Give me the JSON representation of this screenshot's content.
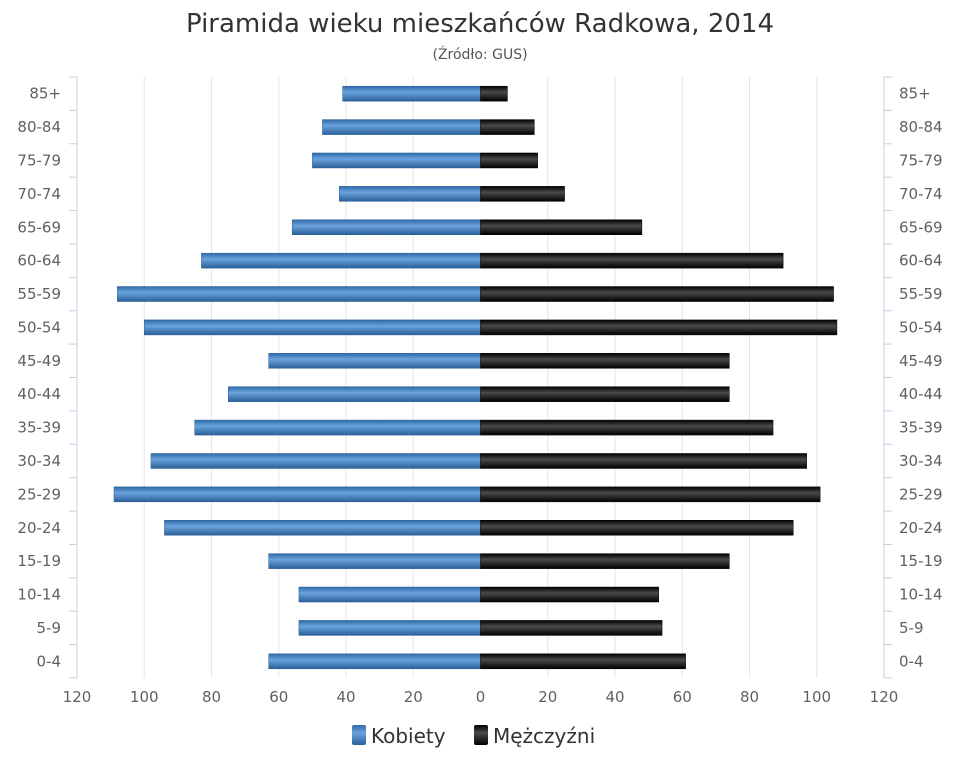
{
  "chart_data": {
    "type": "bar",
    "orientation": "horizontal",
    "layout": "population-pyramid",
    "title": "Piramida wieku mieszkańców Radkowa, 2014",
    "subtitle": "(Źródło: GUS)",
    "categories": [
      "0-4",
      "5-9",
      "10-14",
      "15-19",
      "20-24",
      "25-29",
      "30-34",
      "35-39",
      "40-44",
      "45-49",
      "50-54",
      "55-59",
      "60-64",
      "65-69",
      "70-74",
      "75-79",
      "80-84",
      "85+"
    ],
    "series": [
      {
        "name": "Kobiety",
        "side": "left",
        "color": "#3d7fc1",
        "values": [
          63,
          54,
          54,
          63,
          94,
          109,
          98,
          85,
          75,
          63,
          100,
          108,
          83,
          56,
          42,
          50,
          47,
          41
        ]
      },
      {
        "name": "Mężczyźni",
        "side": "right",
        "color": "#1a1a1a",
        "values": [
          61,
          54,
          53,
          74,
          93,
          101,
          97,
          87,
          74,
          74,
          106,
          105,
          90,
          48,
          25,
          17,
          16,
          8
        ]
      }
    ],
    "xlim": [
      -120,
      120
    ],
    "x_ticks": [
      "120",
      "100",
      "80",
      "60",
      "40",
      "20",
      "0",
      "20",
      "40",
      "60",
      "80",
      "100",
      "120"
    ],
    "grid": true,
    "legend_position": "bottom-center"
  }
}
